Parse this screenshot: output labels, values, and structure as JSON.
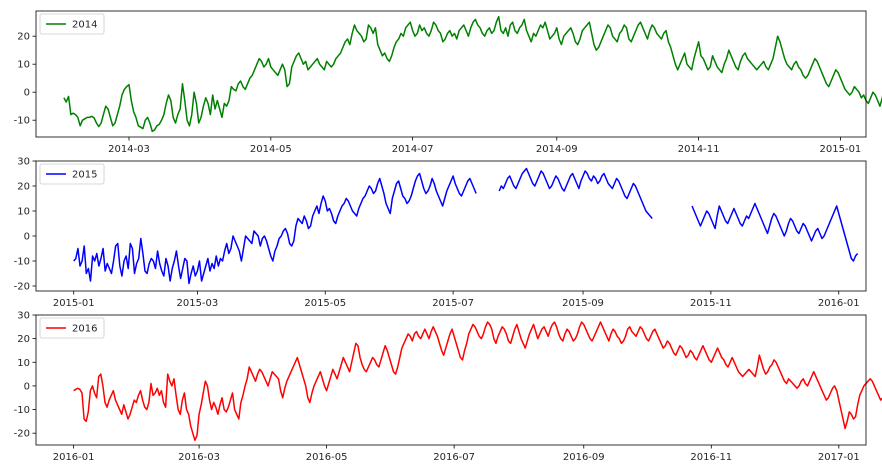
{
  "chart_data": [
    {
      "type": "line",
      "series_name": "2014",
      "color": "#008000",
      "legend_position": "top-left",
      "grid": false,
      "x_start": "2014-02-01",
      "xlim": [
        "2014-01-20",
        "2015-01-12"
      ],
      "ylim": [
        -16,
        29
      ],
      "xticks": [
        "2014-03",
        "2014-05",
        "2014-07",
        "2014-09",
        "2014-11",
        "2015-01"
      ],
      "yticks": [
        -10,
        0,
        10,
        20
      ],
      "values": [
        -2,
        -3.5,
        -1.5,
        -8,
        -7.5,
        -8,
        -9,
        -12,
        -10,
        -9.5,
        -9,
        -9,
        -8.6,
        -9.2,
        -11,
        -12.3,
        -11,
        -8,
        -5,
        -6,
        -9,
        -12,
        -11,
        -8,
        -5,
        -1,
        1,
        2,
        2.7,
        -3,
        -7,
        -9,
        -12,
        -12.5,
        -13,
        -10,
        -9,
        -11,
        -14,
        -13.5,
        -12,
        -11.5,
        -10,
        -8,
        -4,
        -1,
        -3,
        -9,
        -11,
        -8,
        -6,
        3,
        -3,
        -10,
        -12,
        -8,
        0,
        -4,
        -11,
        -9,
        -5,
        -2,
        -4,
        -8,
        -1,
        -6,
        -3,
        -6,
        -9,
        -4,
        -5,
        -3,
        2,
        1,
        0.5,
        3,
        4,
        2,
        1,
        3,
        5,
        6,
        8,
        10,
        12,
        11,
        9,
        10,
        12,
        9,
        8,
        7,
        6,
        8,
        10,
        8,
        2,
        3,
        9,
        11,
        13,
        14,
        12,
        10,
        11,
        8,
        9,
        10,
        11,
        12,
        10,
        9,
        8,
        11,
        10,
        9,
        10,
        12,
        13,
        14,
        16,
        18,
        19,
        17,
        21,
        24,
        22,
        21,
        20,
        18,
        19,
        24,
        23,
        21,
        23,
        17,
        15,
        13,
        14,
        12,
        11,
        13,
        16,
        18,
        19,
        21,
        20,
        23,
        24,
        25,
        22,
        20,
        21,
        24,
        22,
        23,
        21,
        20,
        22,
        25,
        24,
        22,
        21,
        18,
        19,
        21,
        22,
        20,
        21,
        19,
        22,
        23,
        24,
        22,
        20,
        23,
        25,
        26,
        24,
        23,
        21,
        20,
        22,
        23,
        21,
        22,
        25,
        27,
        22,
        21,
        23,
        20,
        24,
        25,
        22,
        21,
        23,
        24,
        26,
        22,
        20,
        18,
        21,
        20,
        22,
        24,
        23,
        25,
        22,
        19,
        20,
        21,
        23,
        19,
        17,
        20,
        21,
        22,
        23,
        21,
        18,
        17,
        19,
        22,
        23,
        24,
        25,
        21,
        17,
        15,
        16,
        18,
        20,
        22,
        24,
        23,
        20,
        19,
        18,
        21,
        22,
        24,
        23,
        19,
        18,
        20,
        22,
        24,
        25,
        23,
        21,
        19,
        22,
        24,
        23,
        21,
        20,
        19,
        21,
        22,
        18,
        16,
        13,
        10,
        8,
        10,
        12,
        14,
        10,
        9,
        8,
        12,
        15,
        18,
        13,
        12,
        10,
        8,
        9,
        13,
        11,
        9,
        8,
        7,
        10,
        12,
        15,
        13,
        11,
        9,
        8,
        11,
        13,
        14,
        12,
        11,
        10,
        9,
        8,
        9,
        10,
        11,
        9,
        8,
        10,
        12,
        16,
        20,
        18,
        15,
        12,
        10,
        9,
        8,
        10,
        11,
        9,
        8,
        6,
        5,
        6,
        8,
        10,
        12,
        11,
        9,
        7,
        5,
        3,
        2,
        4,
        6,
        8,
        7,
        5,
        3,
        1,
        0,
        -1,
        0,
        2,
        1,
        0,
        -2,
        -1,
        -3,
        -4,
        -2,
        0,
        -1,
        -3,
        -5,
        -2,
        2,
        5,
        8,
        12,
        9,
        6,
        3,
        0,
        -2,
        -1,
        0,
        3,
        -4,
        -11,
        -9,
        -10,
        -8,
        -6,
        -4,
        -2,
        -1,
        0,
        -1,
        -3,
        -5,
        -2,
        0,
        1,
        0,
        -2,
        -1,
        0,
        3,
        5,
        4,
        2,
        0,
        -3,
        -6,
        -9,
        -10,
        -12,
        -13,
        -12
      ]
    },
    {
      "type": "line",
      "series_name": "2015",
      "color": "#0000ff",
      "legend_position": "top-left",
      "grid": false,
      "x_start": "2015-01-01",
      "xlim": [
        "2014-12-14",
        "2016-01-14"
      ],
      "ylim": [
        -22,
        30
      ],
      "xticks": [
        "2015-01",
        "2015-03",
        "2015-05",
        "2015-07",
        "2015-09",
        "2015-11",
        "2016-01"
      ],
      "yticks": [
        -20,
        -10,
        0,
        10,
        20,
        30
      ],
      "values": [
        -10,
        -9,
        -5,
        -12,
        -10,
        -4,
        -15,
        -13,
        -18,
        -8,
        -10,
        -7,
        -12,
        -9,
        -5,
        -14,
        -11,
        -13,
        -15,
        -10,
        -4,
        -3,
        -12,
        -16,
        -10,
        -8,
        -13,
        -3,
        -5,
        -15,
        -11,
        -9,
        -1,
        -7,
        -14,
        -15,
        -11,
        -9,
        -10,
        -13,
        -6,
        -11,
        -14,
        -16,
        -9,
        -12,
        -18,
        -13,
        -10,
        -6,
        -12,
        -17,
        -13,
        -9,
        -10,
        -19,
        -15,
        -12,
        -16,
        -14,
        -10,
        -18,
        -15,
        -12,
        -9,
        -14,
        -11,
        -13,
        -8,
        -12,
        -9,
        -10,
        -6,
        -3,
        -7,
        -5,
        0,
        -2,
        -4,
        -6,
        -10,
        -5,
        0,
        -1,
        -2,
        -3,
        2,
        1,
        0,
        -4,
        -1,
        0,
        -2,
        -5,
        -8,
        -10,
        -6,
        -4,
        -1,
        0,
        2,
        3,
        1,
        -3,
        -4,
        -2,
        4,
        7,
        6,
        5,
        8,
        6,
        3,
        4,
        8,
        10,
        12,
        9,
        13,
        16,
        14,
        10,
        11,
        9,
        6,
        5,
        8,
        10,
        12,
        13,
        15,
        14,
        12,
        10,
        9,
        8,
        11,
        13,
        15,
        16,
        18,
        20,
        19,
        17,
        18,
        21,
        23,
        20,
        17,
        13,
        11,
        9,
        15,
        18,
        21,
        22,
        19,
        16,
        15,
        13,
        14,
        16,
        19,
        22,
        24,
        25,
        22,
        19,
        17,
        18,
        20,
        23,
        21,
        18,
        16,
        14,
        12,
        15,
        18,
        20,
        22,
        24,
        21,
        19,
        17,
        16,
        18,
        20,
        22,
        23,
        21,
        19,
        17,
        null,
        null,
        null,
        null,
        null,
        null,
        null,
        null,
        null,
        null,
        18,
        20,
        19,
        21,
        23,
        24,
        22,
        20,
        19,
        21,
        23,
        25,
        26,
        27,
        25,
        23,
        21,
        20,
        22,
        24,
        26,
        25,
        23,
        21,
        19,
        20,
        22,
        24,
        23,
        21,
        19,
        18,
        20,
        22,
        24,
        25,
        23,
        21,
        19,
        22,
        24,
        26,
        25,
        23,
        22,
        24,
        23,
        21,
        22,
        24,
        25,
        23,
        21,
        20,
        19,
        21,
        23,
        22,
        20,
        18,
        16,
        15,
        17,
        19,
        21,
        20,
        18,
        16,
        14,
        12,
        10,
        9,
        8,
        7,
        null,
        null,
        null,
        null,
        null,
        null,
        null,
        null,
        null,
        null,
        null,
        null,
        null,
        null,
        null,
        null,
        null,
        null,
        12,
        10,
        8,
        6,
        4,
        6,
        8,
        10,
        9,
        7,
        5,
        3,
        8,
        12,
        10,
        8,
        6,
        5,
        7,
        9,
        11,
        9,
        7,
        5,
        4,
        6,
        8,
        7,
        9,
        11,
        13,
        11,
        9,
        7,
        5,
        3,
        1,
        4,
        7,
        9,
        8,
        6,
        4,
        2,
        0,
        2,
        5,
        7,
        6,
        4,
        2,
        1,
        3,
        5,
        4,
        2,
        0,
        -2,
        0,
        2,
        3,
        1,
        -1,
        0,
        2,
        4,
        6,
        8,
        10,
        12,
        9,
        6,
        3,
        0,
        -3,
        -6,
        -9,
        -10,
        -8,
        -7
      ]
    },
    {
      "type": "line",
      "series_name": "2016",
      "color": "#ff0000",
      "legend_position": "top-left",
      "grid": false,
      "x_start": "2016-01-01",
      "xlim": [
        "2015-12-14",
        "2017-01-14"
      ],
      "ylim": [
        -25,
        30
      ],
      "xticks": [
        "2016-01",
        "2016-03",
        "2016-05",
        "2016-07",
        "2016-09",
        "2016-11",
        "2017-01"
      ],
      "yticks": [
        -20,
        -10,
        0,
        10,
        20,
        30
      ],
      "values": [
        -2,
        -1.5,
        -1,
        -1.5,
        -3,
        -14,
        -15,
        -11,
        -2,
        0,
        -3,
        -5,
        4,
        5,
        0,
        -7,
        -9,
        -6,
        -4,
        -2,
        -6,
        -8,
        -10,
        -12,
        -8,
        -11,
        -14,
        -12,
        -9,
        -6,
        -7,
        -4,
        -2,
        -6,
        -9,
        -10,
        -7,
        1,
        -4,
        -3,
        -1,
        -4,
        -2,
        -7,
        -9,
        5,
        2,
        0,
        3,
        -4,
        -10,
        -12,
        -6,
        -3,
        -10,
        -12,
        -17,
        -20,
        -23,
        -21,
        -12,
        -8,
        -3,
        2,
        0,
        -6,
        -10,
        -7,
        -9,
        -12,
        -8,
        -5,
        -10,
        -11,
        -9,
        -6,
        -3,
        -10,
        -12,
        -14,
        -7,
        -4,
        0,
        3,
        8,
        6,
        4,
        2,
        5,
        7,
        6,
        4,
        2,
        0,
        3,
        6,
        5,
        4,
        3,
        -2,
        -5,
        -1,
        2,
        4,
        6,
        8,
        10,
        12,
        9,
        6,
        3,
        0,
        -5,
        -7,
        -3,
        0,
        2,
        4,
        6,
        3,
        0,
        -2,
        1,
        4,
        7,
        5,
        3,
        6,
        9,
        12,
        10,
        8,
        6,
        10,
        14,
        18,
        17,
        12,
        9,
        7,
        6,
        8,
        10,
        12,
        11,
        9,
        8,
        11,
        14,
        17,
        15,
        12,
        9,
        6,
        5,
        8,
        12,
        16,
        18,
        20,
        22,
        21,
        19,
        22,
        23,
        21,
        20,
        22,
        24,
        22,
        20,
        23,
        25,
        23,
        21,
        18,
        15,
        13,
        16,
        19,
        22,
        24,
        21,
        18,
        15,
        12,
        11,
        15,
        18,
        22,
        24,
        26,
        25,
        23,
        21,
        20,
        22,
        25,
        27,
        26,
        24,
        20,
        18,
        21,
        23,
        25,
        24,
        22,
        19,
        18,
        21,
        24,
        26,
        23,
        20,
        18,
        16,
        19,
        22,
        24,
        26,
        23,
        20,
        22,
        24,
        25,
        23,
        21,
        24,
        26,
        27,
        25,
        22,
        20,
        19,
        22,
        24,
        23,
        21,
        19,
        20,
        22,
        25,
        27,
        26,
        24,
        22,
        20,
        19,
        21,
        23,
        25,
        27,
        25,
        23,
        21,
        19,
        22,
        24,
        23,
        21,
        20,
        18,
        19,
        21,
        24,
        25,
        23,
        22,
        21,
        23,
        25,
        24,
        22,
        20,
        19,
        21,
        23,
        24,
        22,
        20,
        18,
        16,
        17,
        19,
        18,
        16,
        14,
        13,
        15,
        17,
        16,
        14,
        12,
        13,
        15,
        14,
        12,
        11,
        13,
        15,
        17,
        15,
        13,
        11,
        10,
        12,
        14,
        16,
        14,
        12,
        11,
        9,
        8,
        10,
        12,
        10,
        8,
        6,
        5,
        4,
        5,
        6,
        7,
        6,
        5,
        4,
        8,
        13,
        10,
        7,
        5,
        6,
        8,
        9,
        11,
        10,
        8,
        6,
        4,
        2,
        1,
        3,
        2,
        1,
        0,
        -1,
        0,
        2,
        3,
        1,
        0,
        2,
        4,
        6,
        4,
        2,
        0,
        -2,
        -4,
        -6,
        -5,
        -3,
        -1,
        0,
        -2,
        -6,
        -10,
        -14,
        -18,
        -15,
        -11,
        -12,
        -14,
        -13,
        -8,
        -4,
        -2,
        0,
        1,
        2,
        3,
        2,
        0,
        -2,
        -4,
        -6,
        -5,
        -3,
        3,
        2,
        -3,
        -2,
        -4
      ]
    }
  ]
}
